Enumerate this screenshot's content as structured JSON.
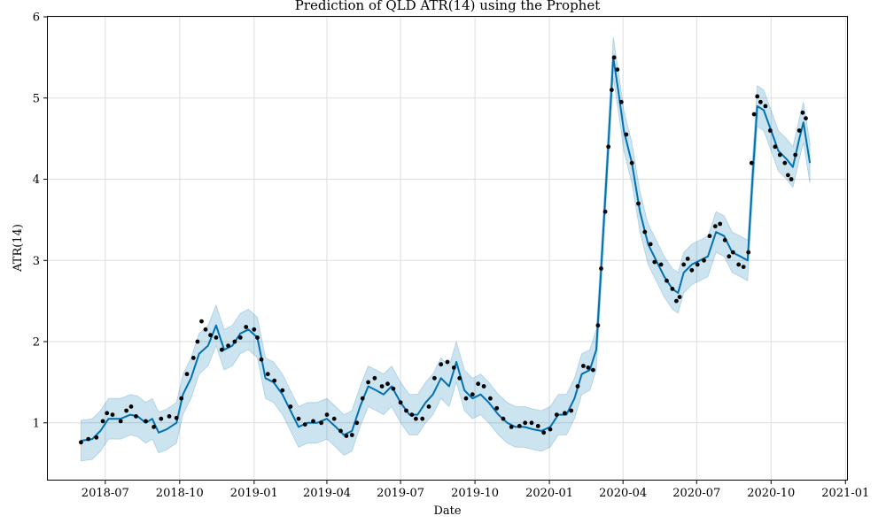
{
  "chart_data": {
    "type": "line",
    "title": "Prediction of QLD  ATR(14) using the Prophet",
    "xlabel": "Date",
    "ylabel": "ATR(14)",
    "x_range": [
      "2018-04-21",
      "2021-01-04"
    ],
    "ylim": [
      0.3,
      6.0
    ],
    "x_ticks": [
      "2018-07-01",
      "2018-10-01",
      "2019-01-01",
      "2019-04-01",
      "2019-07-01",
      "2019-10-01",
      "2020-01-01",
      "2020-04-01",
      "2020-07-01",
      "2020-10-01",
      "2021-01-01"
    ],
    "x_tick_labels": [
      "2018-07",
      "2018-10",
      "2019-01",
      "2019-04",
      "2019-07",
      "2019-10",
      "2020-01",
      "2020-04",
      "2020-07",
      "2020-10",
      "2021-01"
    ],
    "y_ticks": [
      1,
      2,
      3,
      4,
      5,
      6
    ],
    "y_tick_labels": [
      "1",
      "2",
      "3",
      "4",
      "5",
      "6"
    ],
    "grid": true,
    "colors": {
      "forecast": "#0072B2",
      "interval": "#0072B2",
      "observed": "#000000"
    },
    "series": [
      {
        "kind": "observed_points",
        "points": [
          [
            "2018-06-01",
            0.76
          ],
          [
            "2018-06-10",
            0.8
          ],
          [
            "2018-06-20",
            0.82
          ],
          [
            "2018-06-28",
            1.02
          ],
          [
            "2018-07-03",
            1.12
          ],
          [
            "2018-07-10",
            1.1
          ],
          [
            "2018-07-20",
            1.02
          ],
          [
            "2018-07-27",
            1.15
          ],
          [
            "2018-08-02",
            1.2
          ],
          [
            "2018-08-08",
            1.08
          ],
          [
            "2018-08-20",
            1.02
          ],
          [
            "2018-08-30",
            0.95
          ],
          [
            "2018-09-08",
            1.05
          ],
          [
            "2018-09-18",
            1.08
          ],
          [
            "2018-09-27",
            1.06
          ],
          [
            "2018-10-03",
            1.3
          ],
          [
            "2018-10-10",
            1.6
          ],
          [
            "2018-10-18",
            1.8
          ],
          [
            "2018-10-23",
            2.0
          ],
          [
            "2018-10-28",
            2.25
          ],
          [
            "2018-11-02",
            2.15
          ],
          [
            "2018-11-08",
            2.08
          ],
          [
            "2018-11-15",
            2.05
          ],
          [
            "2018-11-22",
            1.9
          ],
          [
            "2018-11-30",
            1.95
          ],
          [
            "2018-12-08",
            2.0
          ],
          [
            "2018-12-15",
            2.05
          ],
          [
            "2018-12-22",
            2.18
          ],
          [
            "2019-01-01",
            2.15
          ],
          [
            "2019-01-05",
            2.05
          ],
          [
            "2019-01-10",
            1.78
          ],
          [
            "2019-01-18",
            1.6
          ],
          [
            "2019-01-26",
            1.52
          ],
          [
            "2019-02-05",
            1.4
          ],
          [
            "2019-02-15",
            1.2
          ],
          [
            "2019-02-25",
            1.05
          ],
          [
            "2019-03-05",
            0.98
          ],
          [
            "2019-03-15",
            1.02
          ],
          [
            "2019-03-25",
            1.0
          ],
          [
            "2019-04-01",
            1.1
          ],
          [
            "2019-04-10",
            1.05
          ],
          [
            "2019-04-18",
            0.9
          ],
          [
            "2019-04-25",
            0.84
          ],
          [
            "2019-05-02",
            0.85
          ],
          [
            "2019-05-08",
            1.0
          ],
          [
            "2019-05-15",
            1.3
          ],
          [
            "2019-05-22",
            1.5
          ],
          [
            "2019-05-30",
            1.55
          ],
          [
            "2019-06-08",
            1.45
          ],
          [
            "2019-06-15",
            1.48
          ],
          [
            "2019-06-22",
            1.42
          ],
          [
            "2019-07-01",
            1.25
          ],
          [
            "2019-07-08",
            1.15
          ],
          [
            "2019-07-15",
            1.1
          ],
          [
            "2019-07-20",
            1.05
          ],
          [
            "2019-07-28",
            1.05
          ],
          [
            "2019-08-05",
            1.2
          ],
          [
            "2019-08-12",
            1.55
          ],
          [
            "2019-08-20",
            1.72
          ],
          [
            "2019-08-28",
            1.75
          ],
          [
            "2019-09-05",
            1.68
          ],
          [
            "2019-09-12",
            1.55
          ],
          [
            "2019-09-20",
            1.3
          ],
          [
            "2019-09-28",
            1.35
          ],
          [
            "2019-10-05",
            1.48
          ],
          [
            "2019-10-12",
            1.45
          ],
          [
            "2019-10-20",
            1.3
          ],
          [
            "2019-10-28",
            1.18
          ],
          [
            "2019-11-05",
            1.05
          ],
          [
            "2019-11-15",
            0.95
          ],
          [
            "2019-11-25",
            0.96
          ],
          [
            "2019-12-02",
            1.0
          ],
          [
            "2019-12-10",
            1.0
          ],
          [
            "2019-12-18",
            0.96
          ],
          [
            "2019-12-25",
            0.88
          ],
          [
            "2020-01-02",
            0.92
          ],
          [
            "2020-01-10",
            1.1
          ],
          [
            "2020-01-20",
            1.12
          ],
          [
            "2020-01-28",
            1.15
          ],
          [
            "2020-02-05",
            1.45
          ],
          [
            "2020-02-12",
            1.7
          ],
          [
            "2020-02-18",
            1.68
          ],
          [
            "2020-02-24",
            1.65
          ],
          [
            "2020-03-01",
            2.2
          ],
          [
            "2020-03-05",
            2.9
          ],
          [
            "2020-03-10",
            3.6
          ],
          [
            "2020-03-14",
            4.4
          ],
          [
            "2020-03-18",
            5.1
          ],
          [
            "2020-03-21",
            5.5
          ],
          [
            "2020-03-25",
            5.35
          ],
          [
            "2020-03-30",
            4.95
          ],
          [
            "2020-04-05",
            4.55
          ],
          [
            "2020-04-12",
            4.2
          ],
          [
            "2020-04-20",
            3.7
          ],
          [
            "2020-04-28",
            3.35
          ],
          [
            "2020-05-05",
            3.2
          ],
          [
            "2020-05-10",
            2.98
          ],
          [
            "2020-05-18",
            2.95
          ],
          [
            "2020-05-25",
            2.75
          ],
          [
            "2020-06-01",
            2.65
          ],
          [
            "2020-06-06",
            2.5
          ],
          [
            "2020-06-10",
            2.55
          ],
          [
            "2020-06-15",
            2.95
          ],
          [
            "2020-06-20",
            3.02
          ],
          [
            "2020-06-25",
            2.88
          ],
          [
            "2020-07-02",
            2.95
          ],
          [
            "2020-07-10",
            3.0
          ],
          [
            "2020-07-17",
            3.3
          ],
          [
            "2020-07-24",
            3.42
          ],
          [
            "2020-07-30",
            3.45
          ],
          [
            "2020-08-05",
            3.25
          ],
          [
            "2020-08-10",
            3.05
          ],
          [
            "2020-08-15",
            3.1
          ],
          [
            "2020-08-22",
            2.95
          ],
          [
            "2020-08-28",
            2.92
          ],
          [
            "2020-09-03",
            3.1
          ],
          [
            "2020-09-07",
            4.2
          ],
          [
            "2020-09-10",
            4.8
          ],
          [
            "2020-09-14",
            5.02
          ],
          [
            "2020-09-18",
            4.95
          ],
          [
            "2020-09-24",
            4.9
          ],
          [
            "2020-09-30",
            4.6
          ],
          [
            "2020-10-06",
            4.4
          ],
          [
            "2020-10-12",
            4.3
          ],
          [
            "2020-10-18",
            4.2
          ],
          [
            "2020-10-22",
            4.05
          ],
          [
            "2020-10-26",
            4.0
          ],
          [
            "2020-10-31",
            4.3
          ],
          [
            "2020-11-05",
            4.6
          ],
          [
            "2020-11-09",
            4.82
          ],
          [
            "2020-11-13",
            4.75
          ]
        ]
      },
      {
        "kind": "forecast_line",
        "points": [
          [
            "2018-06-01",
            0.78
          ],
          [
            "2018-06-15",
            0.8
          ],
          [
            "2018-06-25",
            0.9
          ],
          [
            "2018-07-05",
            1.05
          ],
          [
            "2018-07-20",
            1.05
          ],
          [
            "2018-08-01",
            1.1
          ],
          [
            "2018-08-10",
            1.08
          ],
          [
            "2018-08-20",
            1.0
          ],
          [
            "2018-08-28",
            1.05
          ],
          [
            "2018-09-05",
            0.88
          ],
          [
            "2018-09-15",
            0.92
          ],
          [
            "2018-09-27",
            1.0
          ],
          [
            "2018-10-05",
            1.35
          ],
          [
            "2018-10-15",
            1.55
          ],
          [
            "2018-10-25",
            1.85
          ],
          [
            "2018-11-05",
            1.95
          ],
          [
            "2018-11-15",
            2.2
          ],
          [
            "2018-11-25",
            1.9
          ],
          [
            "2018-12-05",
            1.95
          ],
          [
            "2018-12-15",
            2.1
          ],
          [
            "2018-12-25",
            2.15
          ],
          [
            "2019-01-05",
            2.05
          ],
          [
            "2019-01-15",
            1.55
          ],
          [
            "2019-01-25",
            1.5
          ],
          [
            "2019-02-05",
            1.35
          ],
          [
            "2019-02-15",
            1.15
          ],
          [
            "2019-02-25",
            0.95
          ],
          [
            "2019-03-08",
            1.0
          ],
          [
            "2019-03-20",
            1.0
          ],
          [
            "2019-04-01",
            1.05
          ],
          [
            "2019-04-12",
            0.95
          ],
          [
            "2019-04-22",
            0.85
          ],
          [
            "2019-05-02",
            0.9
          ],
          [
            "2019-05-12",
            1.2
          ],
          [
            "2019-05-22",
            1.45
          ],
          [
            "2019-06-01",
            1.4
          ],
          [
            "2019-06-10",
            1.35
          ],
          [
            "2019-06-20",
            1.45
          ],
          [
            "2019-07-01",
            1.25
          ],
          [
            "2019-07-12",
            1.1
          ],
          [
            "2019-07-22",
            1.1
          ],
          [
            "2019-08-01",
            1.25
          ],
          [
            "2019-08-10",
            1.35
          ],
          [
            "2019-08-20",
            1.55
          ],
          [
            "2019-08-30",
            1.45
          ],
          [
            "2019-09-08",
            1.75
          ],
          [
            "2019-09-18",
            1.4
          ],
          [
            "2019-09-28",
            1.3
          ],
          [
            "2019-10-08",
            1.35
          ],
          [
            "2019-10-18",
            1.25
          ],
          [
            "2019-10-30",
            1.1
          ],
          [
            "2019-11-10",
            1.0
          ],
          [
            "2019-11-20",
            0.95
          ],
          [
            "2019-12-01",
            0.95
          ],
          [
            "2019-12-12",
            0.92
          ],
          [
            "2019-12-22",
            0.9
          ],
          [
            "2020-01-02",
            0.95
          ],
          [
            "2020-01-12",
            1.1
          ],
          [
            "2020-01-22",
            1.1
          ],
          [
            "2020-02-01",
            1.3
          ],
          [
            "2020-02-10",
            1.6
          ],
          [
            "2020-02-20",
            1.65
          ],
          [
            "2020-02-28",
            1.9
          ],
          [
            "2020-03-05",
            2.9
          ],
          [
            "2020-03-12",
            4.1
          ],
          [
            "2020-03-20",
            5.5
          ],
          [
            "2020-03-26",
            5.1
          ],
          [
            "2020-04-02",
            4.6
          ],
          [
            "2020-04-12",
            4.2
          ],
          [
            "2020-04-22",
            3.6
          ],
          [
            "2020-05-02",
            3.2
          ],
          [
            "2020-05-12",
            3.0
          ],
          [
            "2020-05-22",
            2.8
          ],
          [
            "2020-06-01",
            2.65
          ],
          [
            "2020-06-08",
            2.6
          ],
          [
            "2020-06-15",
            2.85
          ],
          [
            "2020-06-25",
            2.95
          ],
          [
            "2020-07-05",
            3.0
          ],
          [
            "2020-07-15",
            3.05
          ],
          [
            "2020-07-25",
            3.35
          ],
          [
            "2020-08-04",
            3.3
          ],
          [
            "2020-08-14",
            3.1
          ],
          [
            "2020-08-24",
            3.05
          ],
          [
            "2020-09-02",
            3.0
          ],
          [
            "2020-09-08",
            4.0
          ],
          [
            "2020-09-14",
            4.9
          ],
          [
            "2020-09-22",
            4.85
          ],
          [
            "2020-10-01",
            4.6
          ],
          [
            "2020-10-10",
            4.35
          ],
          [
            "2020-10-20",
            4.25
          ],
          [
            "2020-10-28",
            4.15
          ],
          [
            "2020-11-05",
            4.5
          ],
          [
            "2020-11-10",
            4.7
          ],
          [
            "2020-11-18",
            4.2
          ]
        ]
      },
      {
        "kind": "uncertainty_interval",
        "half_width": 0.25
      }
    ]
  }
}
